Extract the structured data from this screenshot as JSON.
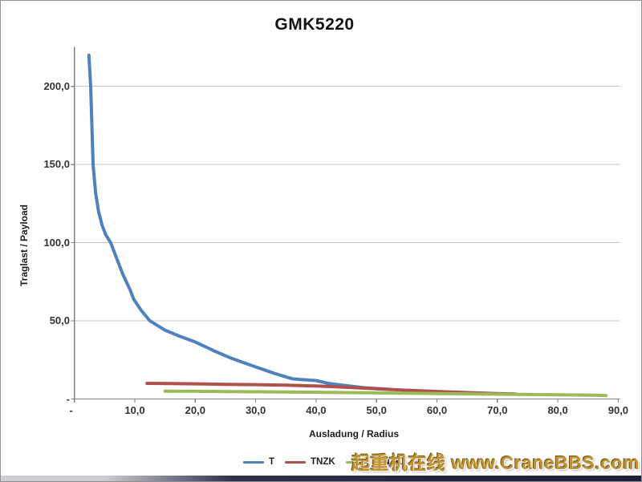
{
  "chart_data": {
    "type": "line",
    "title": "GMK5220",
    "xlabel": "Ausladung / Radius",
    "ylabel": "Traglast / Payload",
    "xlim": [
      0,
      90
    ],
    "ylim": [
      0,
      225
    ],
    "grid": "horizontal-only",
    "legend_position": "bottom-center",
    "x_ticks": {
      "values": [
        0,
        10,
        20,
        30,
        40,
        50,
        60,
        70,
        80,
        90
      ],
      "labels": [
        "-",
        "10,0",
        "20,0",
        "30,0",
        "40,0",
        "50,0",
        "60,0",
        "70,0",
        "80,0",
        "90,0"
      ]
    },
    "y_ticks": {
      "values": [
        0,
        50,
        100,
        150,
        200
      ],
      "labels": [
        "-",
        "50,0",
        "100,0",
        "150,0",
        "200,0"
      ]
    },
    "series": [
      {
        "name": "T",
        "color": "#4F81BD",
        "points": [
          [
            2.4,
            220
          ],
          [
            2.7,
            200
          ],
          [
            2.9,
            175
          ],
          [
            3.1,
            150
          ],
          [
            3.5,
            132
          ],
          [
            4,
            120
          ],
          [
            4.6,
            111
          ],
          [
            5.2,
            105
          ],
          [
            6,
            100
          ],
          [
            7,
            90
          ],
          [
            8,
            80
          ],
          [
            9.2,
            70
          ],
          [
            9.8,
            64
          ],
          [
            11,
            57
          ],
          [
            12.5,
            50
          ],
          [
            15,
            44
          ],
          [
            17.5,
            40
          ],
          [
            20,
            36.5
          ],
          [
            23,
            31
          ],
          [
            26,
            26
          ],
          [
            30,
            20.5
          ],
          [
            33,
            16.5
          ],
          [
            36,
            13
          ],
          [
            37.5,
            12.4
          ],
          [
            40,
            11.8
          ],
          [
            42,
            10
          ],
          [
            45,
            8.5
          ],
          [
            48,
            7.2
          ],
          [
            52,
            6.2
          ]
        ]
      },
      {
        "name": "TNZK",
        "color": "#B04F4B",
        "points": [
          [
            12,
            10
          ],
          [
            16,
            9.9
          ],
          [
            20,
            9.7
          ],
          [
            25,
            9.4
          ],
          [
            30,
            9.2
          ],
          [
            35,
            8.8
          ],
          [
            40,
            8.3
          ],
          [
            45,
            7.5
          ],
          [
            50,
            6.5
          ],
          [
            55,
            5.6
          ],
          [
            60,
            4.8
          ],
          [
            65,
            4.1
          ],
          [
            70,
            3.5
          ],
          [
            73,
            3.2
          ]
        ]
      },
      {
        "name": "TVNZK",
        "color": "#9BBB59",
        "points": [
          [
            15,
            5
          ],
          [
            20,
            4.9
          ],
          [
            30,
            4.6
          ],
          [
            40,
            4.3
          ],
          [
            50,
            3.9
          ],
          [
            60,
            3.5
          ],
          [
            70,
            3.1
          ],
          [
            80,
            2.7
          ],
          [
            86,
            2.4
          ],
          [
            88,
            2.2
          ]
        ]
      }
    ]
  },
  "watermark": {
    "text": "起重机在线 www.CraneBBS.com"
  },
  "style_colors": {
    "series_blue": "#4F81BD",
    "series_red": "#B04F4B",
    "series_green": "#9BBB59",
    "gridline": "#c6c6c6",
    "axis": "#808080",
    "watermark_gold": "#bf9130",
    "footer_bar_dark": "#1f1f36"
  }
}
